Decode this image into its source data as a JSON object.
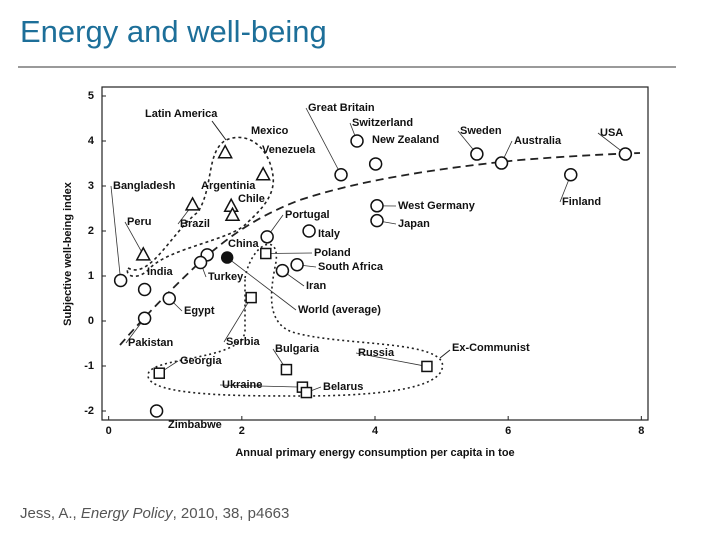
{
  "slide_title": "Energy and well-being",
  "citation": {
    "author": "Jess, A., ",
    "journal": "Energy Policy",
    "details": ", 2010, 38, p4663"
  },
  "chart_data": {
    "type": "scatter",
    "x_label": "Annual primary energy consumption per capita in toe",
    "y_label": "Subjective well-being index",
    "labels": [
      "Great Britain",
      "Switzerland",
      "New Zealand",
      "Sweden",
      "Australia",
      "USA",
      "Finland",
      "West Germany",
      "Japan",
      "Mexico",
      "Venezuela",
      "Argentinia",
      "Chile",
      "Brazil",
      "Peru",
      "Bangladesh",
      "India",
      "Pakistan",
      "Egypt",
      "China",
      "Turkey",
      "Portugal",
      "Italy",
      "Poland",
      "South Africa",
      "Iran",
      "World (average)",
      "Serbia",
      "Bulgaria",
      "Russia",
      "Georgia",
      "Ukraine",
      "Belarus",
      "Zimbabwe"
    ],
    "x": [
      3.49,
      3.73,
      4.01,
      5.53,
      5.9,
      7.76,
      6.94,
      4.03,
      4.03,
      1.75,
      2.32,
      1.84,
      1.86,
      1.26,
      0.52,
      0.18,
      0.54,
      0.54,
      0.91,
      1.48,
      1.38,
      2.38,
      3.01,
      2.36,
      2.83,
      2.61,
      1.78,
      2.14,
      2.67,
      4.78,
      0.76,
      2.91,
      2.97,
      0.72
    ],
    "y": [
      3.25,
      4.0,
      3.49,
      3.71,
      3.51,
      3.71,
      3.25,
      2.56,
      2.23,
      3.74,
      3.25,
      2.55,
      2.35,
      2.58,
      1.47,
      0.9,
      0.7,
      0.06,
      0.5,
      1.47,
      1.3,
      1.87,
      2.0,
      1.5,
      1.25,
      1.12,
      1.41,
      0.52,
      -1.08,
      -1.01,
      -1.16,
      -1.47,
      -1.59,
      -2.0
    ],
    "markers": [
      "circle",
      "circle",
      "circle",
      "circle",
      "circle",
      "circle",
      "circle",
      "circle",
      "circle",
      "triangle",
      "triangle",
      "triangle",
      "triangle",
      "triangle",
      "triangle",
      "circle",
      "circle",
      "circle",
      "circle",
      "circle",
      "circle",
      "circle",
      "circle",
      "square",
      "circle",
      "circle",
      "filled",
      "square",
      "square",
      "square",
      "square",
      "square",
      "square",
      "circle"
    ],
    "annotations": [
      "Latin America",
      "Ex-Communist"
    ],
    "xlim": [
      -0.1,
      8.1
    ],
    "ylim": [
      -2.2,
      5.2
    ],
    "xticks": [
      0,
      2,
      4,
      6,
      8
    ],
    "yticks": [
      5,
      4,
      3,
      2,
      1,
      0,
      -1,
      -2
    ]
  }
}
